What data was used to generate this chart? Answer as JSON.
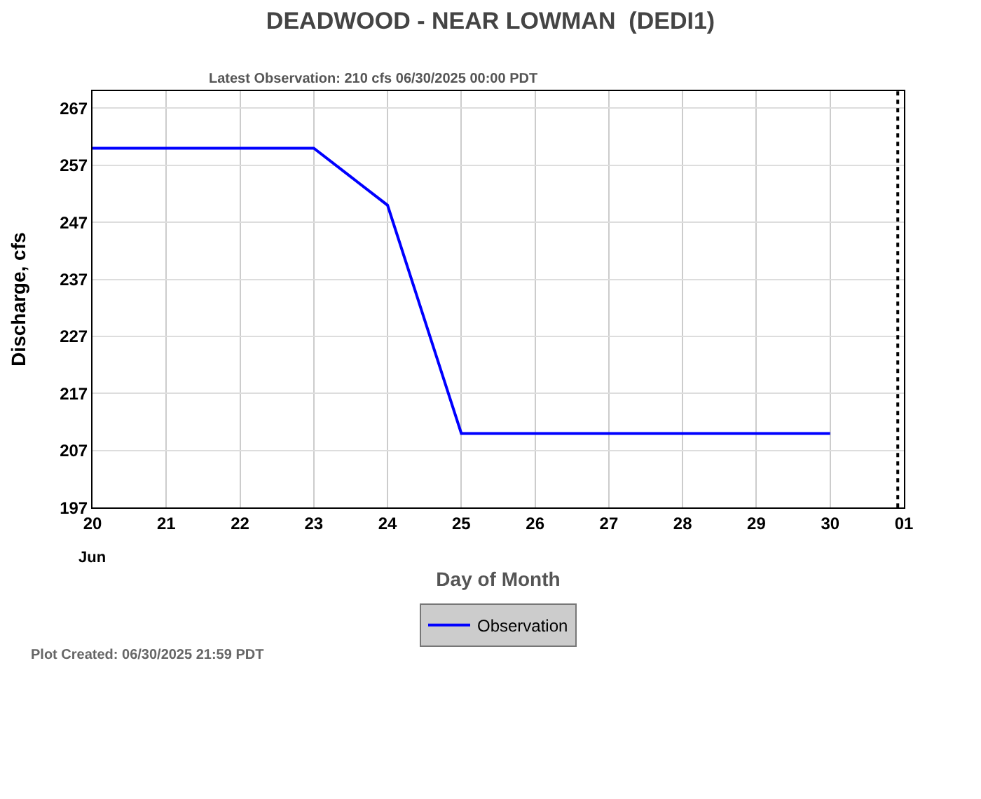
{
  "chart_data": {
    "type": "line",
    "title": "DEADWOOD - NEAR LOWMAN  (DEDI1)",
    "subtitle": "Latest Observation: 210 cfs 06/30/2025 00:00 PDT",
    "xlabel": "Day of Month",
    "ylabel": "Discharge, cfs",
    "series": [
      {
        "name": "Observation",
        "color": "#0000ff",
        "x": [
          "2025-06-20T00:00",
          "2025-06-23T00:00",
          "2025-06-23T12:00",
          "2025-06-24T00:00",
          "2025-06-25T00:00",
          "2025-06-30T00:00"
        ],
        "values": [
          260,
          260,
          255,
          250,
          210,
          210
        ]
      }
    ],
    "xlim": [
      "2025-06-20",
      "2025-07-01"
    ],
    "xticks": [
      {
        "value": "2025-06-20",
        "label": "20"
      },
      {
        "value": "2025-06-21",
        "label": "21"
      },
      {
        "value": "2025-06-22",
        "label": "22"
      },
      {
        "value": "2025-06-23",
        "label": "23"
      },
      {
        "value": "2025-06-24",
        "label": "24"
      },
      {
        "value": "2025-06-25",
        "label": "25"
      },
      {
        "value": "2025-06-26",
        "label": "26"
      },
      {
        "value": "2025-06-27",
        "label": "27"
      },
      {
        "value": "2025-06-28",
        "label": "28"
      },
      {
        "value": "2025-06-29",
        "label": "29"
      },
      {
        "value": "2025-06-30",
        "label": "30"
      },
      {
        "value": "2025-07-01",
        "label": "01"
      }
    ],
    "ylim": [
      197,
      270
    ],
    "yticks": [
      197,
      207,
      217,
      227,
      237,
      247,
      257,
      267
    ],
    "ref_lines": [
      {
        "axis": "x",
        "value": "2025-06-30T22:00",
        "label": null,
        "color": "#000000",
        "line_style": "dotted"
      }
    ],
    "annotations": [
      "Jun",
      "Plot Created: 06/30/2025 21:59 PDT"
    ],
    "grid": true,
    "legend": "bottom",
    "marker": "none",
    "line_style": "solid"
  }
}
